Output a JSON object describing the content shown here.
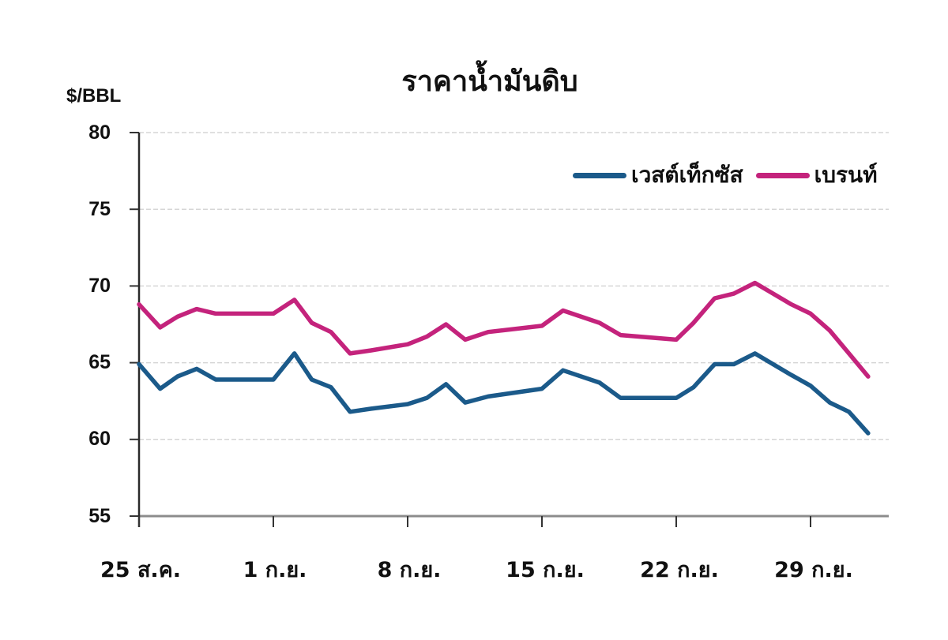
{
  "title": "ราคาน้ำมันดิบ",
  "unit_label": "$/BBL",
  "y_ticks": [
    "80",
    "75",
    "70",
    "65",
    "60",
    "55"
  ],
  "x_ticks": [
    "25 ส.ค.",
    "1 ก.ย.",
    "8 ก.ย.",
    "15 ก.ย.",
    "22 ก.ย.",
    "29 ก.ย."
  ],
  "legend": [
    {
      "label": "เวสต์เท็กซัส",
      "color": "#1b5a8a"
    },
    {
      "label": "เบรนท์",
      "color": "#c4237c"
    }
  ],
  "chart_data": {
    "type": "line",
    "title": "ราคาน้ำมันดิบ",
    "xlabel": "",
    "ylabel": "$/BBL",
    "ylim": [
      55,
      80
    ],
    "y_ticks": [
      55,
      60,
      65,
      70,
      75,
      80
    ],
    "x_tick_labels": [
      "25 ส.ค.",
      "1 ก.ย.",
      "8 ก.ย.",
      "15 ก.ย.",
      "22 ก.ย.",
      "29 ก.ย."
    ],
    "grid": "horizontal dashed",
    "legend_position": "top-right",
    "x_day_offset": [
      0,
      1.1,
      2,
      3,
      4,
      7,
      8.1,
      9,
      10,
      11,
      12.1,
      14,
      15,
      16,
      17,
      18.2,
      21,
      22.1,
      24,
      25.1,
      28,
      28.9,
      30,
      31,
      32.1,
      34,
      35,
      36,
      37,
      38
    ],
    "series": [
      {
        "name": "เวสต์เท็กซัส",
        "color": "#1b5a8a",
        "values": [
          64.9,
          63.3,
          64.1,
          64.6,
          63.9,
          63.9,
          65.6,
          63.9,
          63.4,
          61.8,
          62.0,
          62.3,
          62.7,
          63.6,
          62.4,
          62.8,
          63.3,
          64.5,
          63.7,
          62.7,
          62.7,
          63.4,
          64.9,
          64.9,
          65.6,
          64.2,
          63.5,
          62.4,
          61.8,
          60.4
        ]
      },
      {
        "name": "เบรนท์",
        "color": "#c4237c",
        "values": [
          68.8,
          67.3,
          68.0,
          68.5,
          68.2,
          68.2,
          69.1,
          67.6,
          67.0,
          65.6,
          65.8,
          66.2,
          66.7,
          67.5,
          66.5,
          67.0,
          67.4,
          68.4,
          67.6,
          66.8,
          66.5,
          67.6,
          69.2,
          69.5,
          70.2,
          68.8,
          68.2,
          67.1,
          65.6,
          64.1
        ]
      }
    ]
  }
}
